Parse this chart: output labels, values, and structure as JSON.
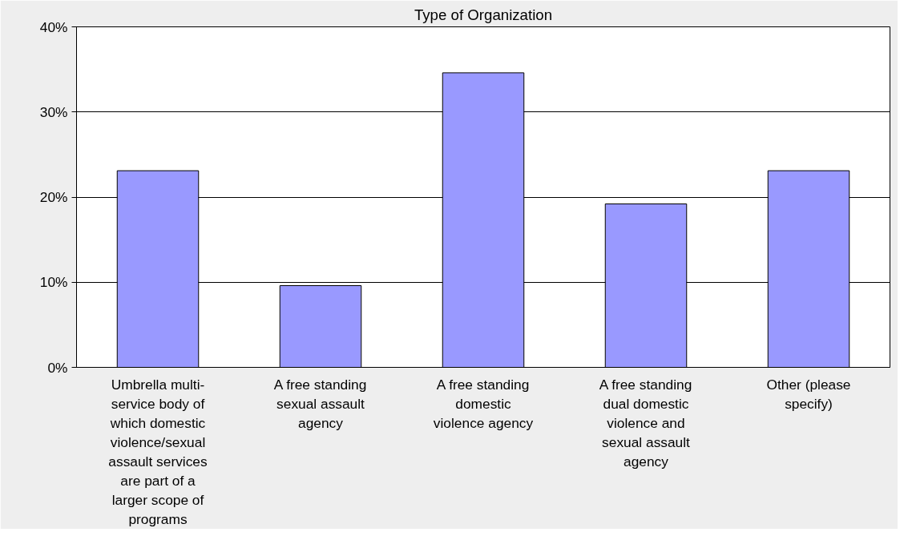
{
  "chart_data": {
    "type": "bar",
    "title": "Type of Organization",
    "categories": [
      "Umbrella multi-service body of which domestic violence/sexual assault services are part of a larger scope of programs",
      "A free standing sexual assault agency",
      "A free standing domestic violence agency",
      "A free standing dual domestic violence and sexual assault agency",
      "Other (please specify)"
    ],
    "values": [
      23.1,
      9.6,
      34.6,
      19.2,
      23.1
    ],
    "color": "#9999ff",
    "ylim": [
      0,
      40
    ],
    "yticks": [
      {
        "value": 0,
        "label": "0%"
      },
      {
        "value": 10,
        "label": "10%"
      },
      {
        "value": 20,
        "label": "20%"
      },
      {
        "value": 30,
        "label": "30%"
      },
      {
        "value": 40,
        "label": "40%"
      }
    ],
    "grid": "y"
  }
}
